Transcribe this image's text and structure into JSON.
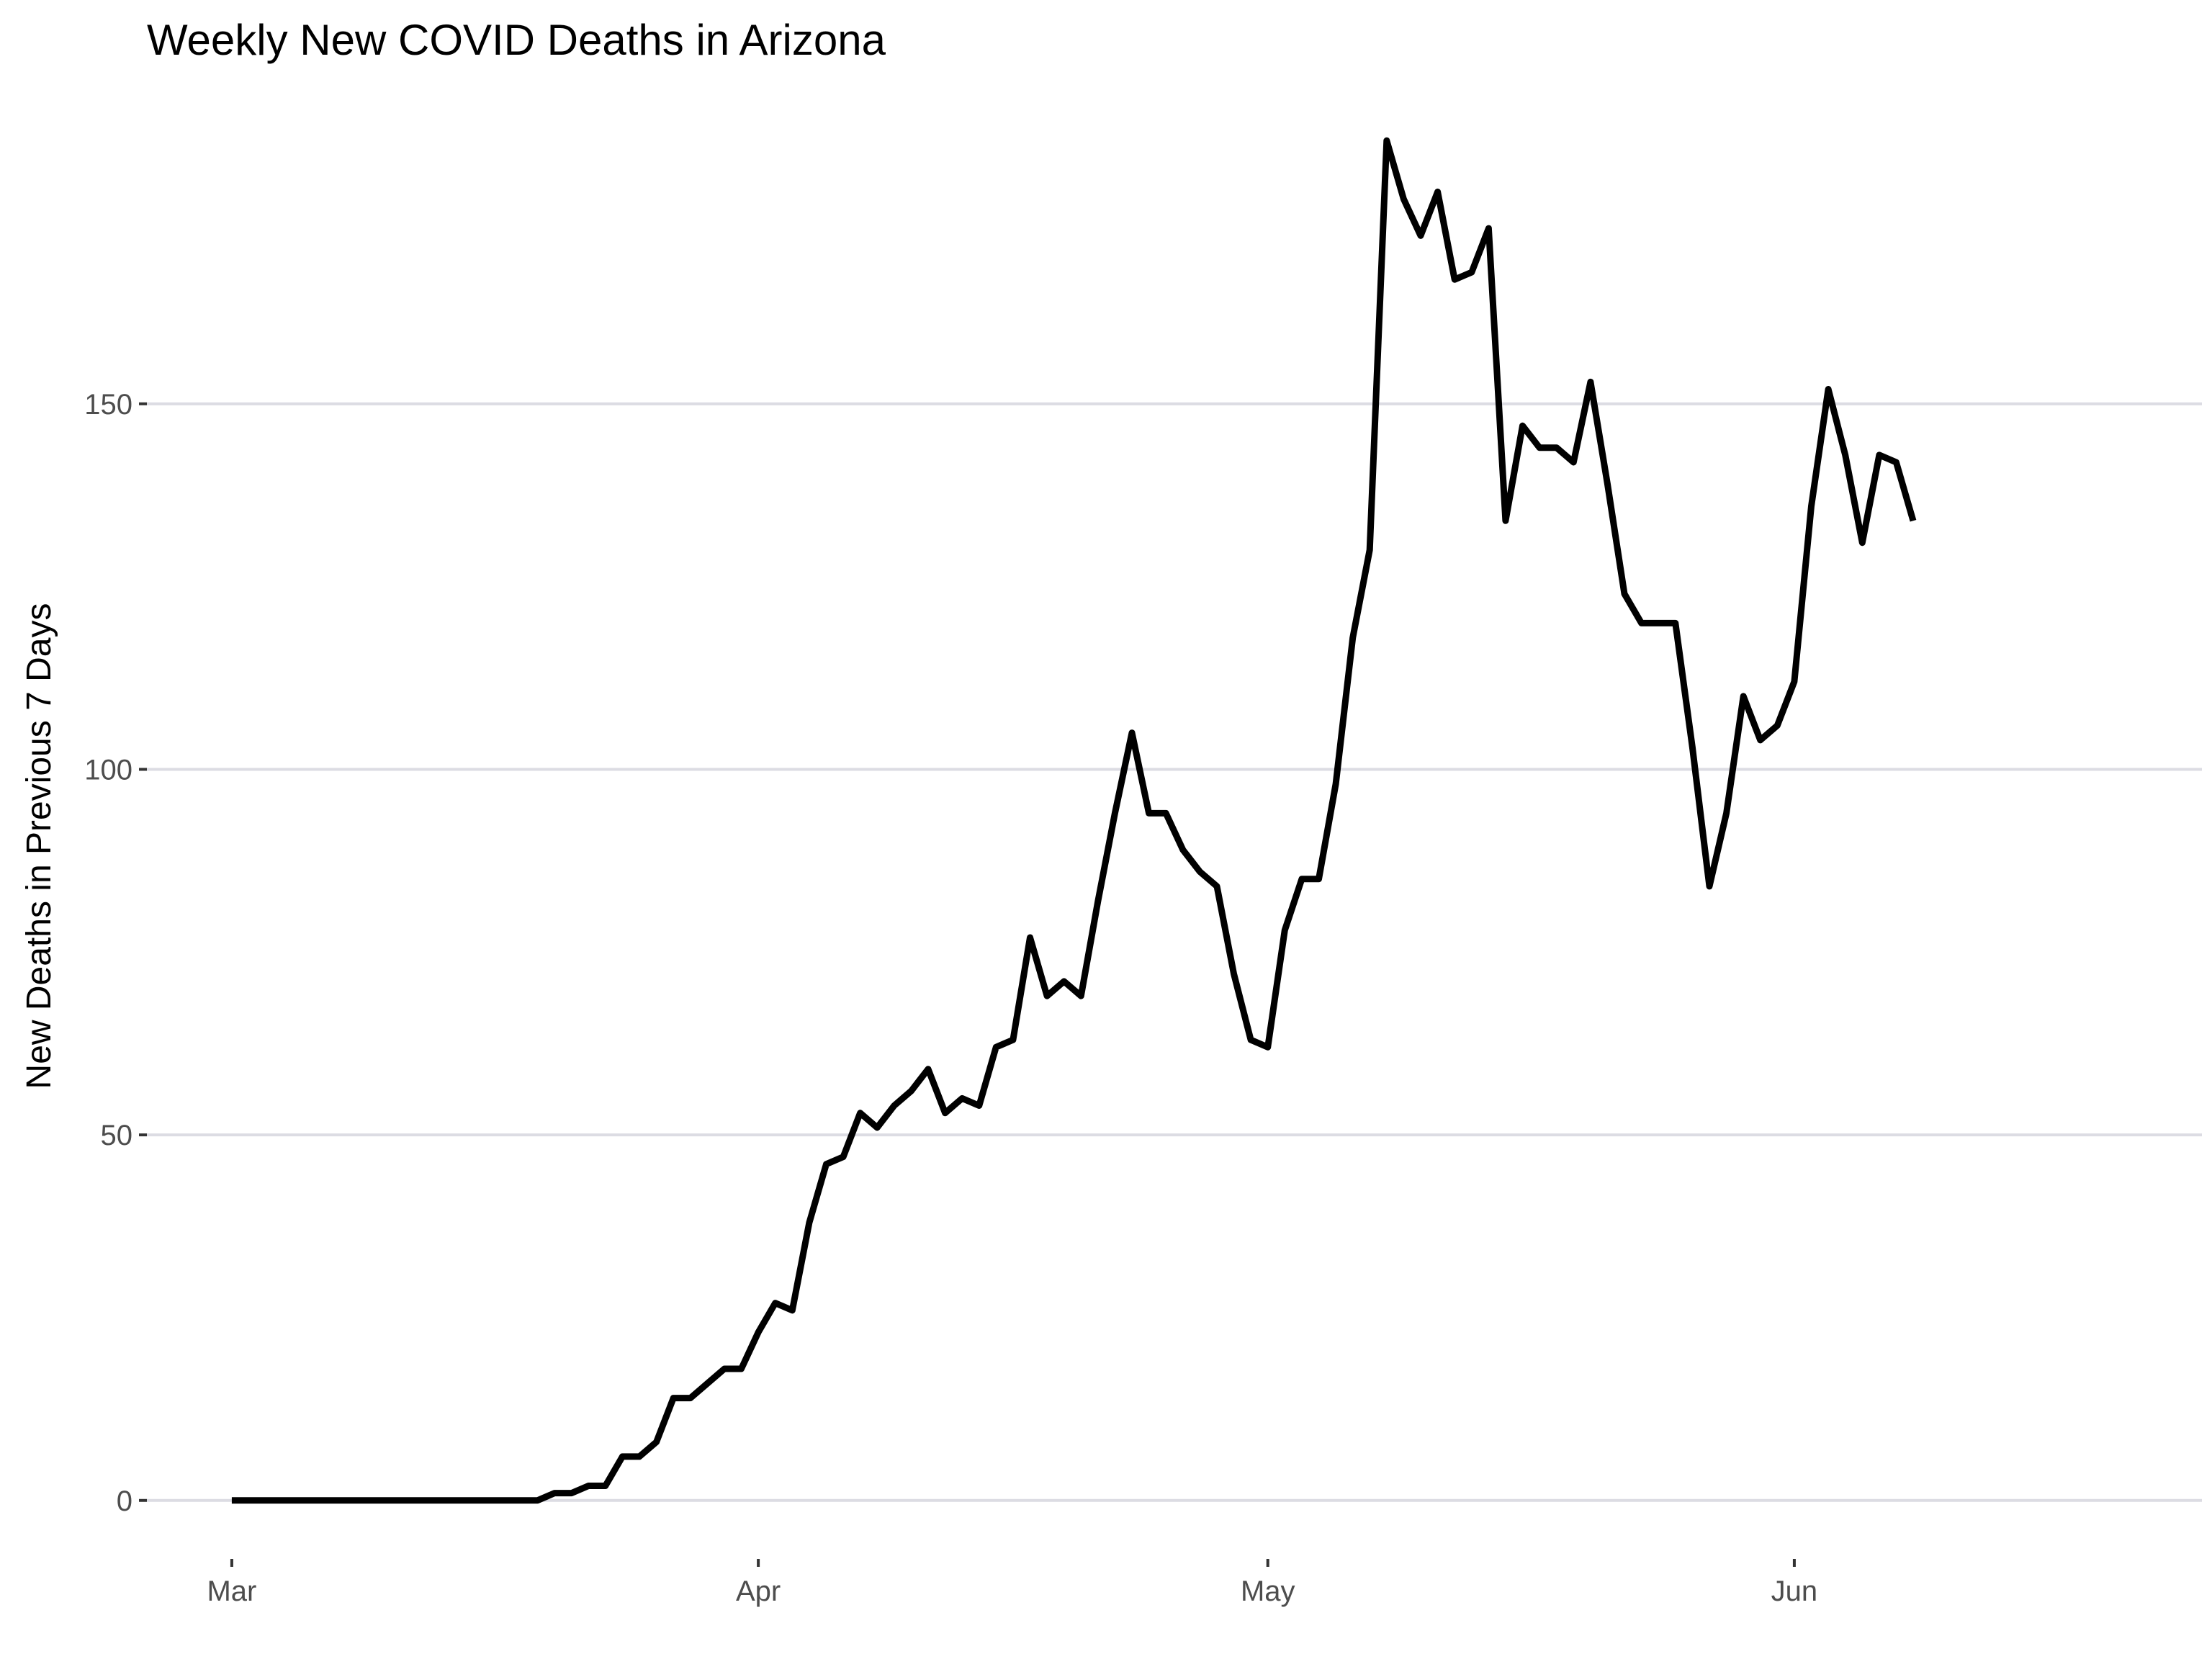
{
  "chart_data": {
    "type": "line",
    "title": "Weekly New COVID Deaths in Arizona",
    "xlabel": "",
    "ylabel": "New Deaths in Previous 7 Days",
    "x_start": "2020-03-01",
    "xlim": [
      "2020-02-25",
      "2020-06-25"
    ],
    "ylim": [
      -8,
      188
    ],
    "y_ticks": [
      {
        "value": 0,
        "label": "0"
      },
      {
        "value": 50,
        "label": "50"
      },
      {
        "value": 100,
        "label": "100"
      },
      {
        "value": 150,
        "label": "150"
      }
    ],
    "x_ticks": [
      {
        "date": "2020-03-01",
        "label": "Mar"
      },
      {
        "date": "2020-04-01",
        "label": "Apr"
      },
      {
        "date": "2020-05-01",
        "label": "May"
      },
      {
        "date": "2020-06-01",
        "label": "Jun"
      }
    ],
    "grid": true,
    "legend": "none",
    "line_color": "#000000",
    "grid_color": "#dcdce3",
    "series": [
      {
        "values": [
          0,
          0,
          0,
          0,
          0,
          0,
          0,
          0,
          0,
          0,
          0,
          0,
          0,
          0,
          0,
          0,
          0,
          0,
          0,
          1,
          1,
          2,
          2,
          6,
          6,
          8,
          14,
          14,
          16,
          18,
          18,
          23,
          27,
          26,
          38,
          46,
          47,
          53,
          51,
          54,
          56,
          59,
          53,
          55,
          54,
          62,
          63,
          77,
          69,
          71,
          69,
          82,
          94,
          105,
          94,
          94,
          89,
          86,
          84,
          72,
          63,
          62,
          78,
          85,
          85,
          98,
          118,
          130,
          186,
          178,
          173,
          179,
          167,
          168,
          174,
          134,
          147,
          144,
          144,
          142,
          153,
          139,
          124,
          120,
          120,
          120,
          103,
          84,
          94,
          110,
          104,
          106,
          112,
          136,
          152,
          143,
          131,
          143,
          142,
          134
        ]
      }
    ]
  }
}
